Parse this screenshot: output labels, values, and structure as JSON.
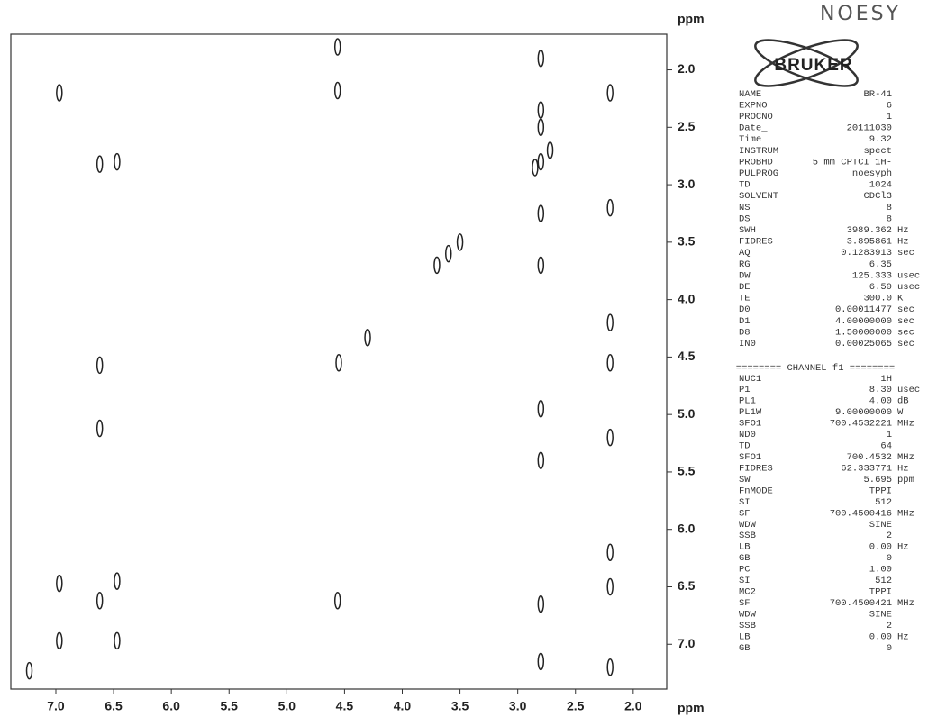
{
  "chart_data": {
    "type": "scatter",
    "annotation": "NOESY",
    "logo": "BRUKER",
    "x_label": "ppm",
    "y_label": "ppm",
    "color": "#222222",
    "invert_x": true,
    "invert_y": true,
    "xlim": [
      7.39,
      1.71
    ],
    "ylim": [
      1.69,
      7.39
    ],
    "xticks": [
      {
        "value": 7.0,
        "label": "7.0"
      },
      6.5,
      {
        "value": 6.0,
        "label": "6.0"
      },
      5.5,
      {
        "value": 5.0,
        "label": "5.0"
      },
      4.5,
      {
        "value": 4.0,
        "label": "4.0"
      },
      3.5,
      {
        "value": 3.0,
        "label": "3.0"
      },
      2.5,
      {
        "value": 2.0,
        "label": "2.0"
      }
    ],
    "yticks": [
      {
        "value": 2.0,
        "label": "2.0"
      },
      2.5,
      {
        "value": 3.0,
        "label": "3.0"
      },
      3.5,
      {
        "value": 4.0,
        "label": "4.0"
      },
      4.5,
      {
        "value": 5.0,
        "label": "5.0"
      },
      5.5,
      {
        "value": 6.0,
        "label": "6.0"
      },
      6.5,
      {
        "value": 7.0,
        "label": "7.0"
      }
    ],
    "x": [
      6.97,
      6.62,
      6.47,
      4.56,
      4.56,
      2.8,
      2.8,
      2.8,
      2.8,
      2.72,
      2.85,
      2.2,
      2.2,
      2.2,
      2.2,
      2.2,
      2.2,
      2.2,
      2.2,
      2.8,
      2.8,
      2.8,
      2.8,
      2.8,
      2.8,
      3.5,
      3.6,
      3.7,
      4.55,
      4.3,
      6.62,
      6.62,
      4.56,
      6.97,
      6.62,
      6.47,
      6.47,
      6.97,
      7.23
    ],
    "values": [
      2.2,
      2.82,
      2.8,
      1.8,
      2.18,
      1.9,
      2.35,
      2.5,
      2.8,
      2.7,
      2.85,
      2.2,
      3.2,
      4.2,
      4.55,
      5.2,
      6.2,
      6.5,
      7.2,
      3.25,
      3.7,
      4.95,
      5.4,
      6.65,
      7.15,
      3.5,
      3.6,
      3.7,
      4.55,
      4.33,
      4.57,
      5.12,
      6.62,
      6.47,
      6.62,
      6.45,
      6.97,
      6.97,
      7.23
    ]
  },
  "parameters": [
    [
      "NAME",
      "BR-41"
    ],
    [
      "EXPNO",
      "6"
    ],
    [
      "PROCNO",
      "1"
    ],
    [
      "Date_",
      "20111030"
    ],
    [
      "Time",
      "9.32"
    ],
    [
      "INSTRUM",
      "spect"
    ],
    [
      "PROBHD",
      "5 mm CPTCI 1H-"
    ],
    [
      "PULPROG",
      "noesyph"
    ],
    [
      "TD",
      "1024"
    ],
    [
      "SOLVENT",
      "CDCl3"
    ],
    [
      "NS",
      "8"
    ],
    [
      "DS",
      "8"
    ],
    [
      "SWH",
      "3989.362",
      "Hz"
    ],
    [
      "FIDRES",
      "3.895861",
      "Hz"
    ],
    [
      "AQ",
      "0.1283913",
      "sec"
    ],
    [
      "RG",
      "6.35"
    ],
    [
      "DW",
      "125.333",
      "usec"
    ],
    [
      "DE",
      "6.50",
      "usec"
    ],
    [
      "TE",
      "300.0",
      "K"
    ],
    [
      "D0",
      "0.00011477",
      "sec"
    ],
    [
      "D1",
      "4.00000000",
      "sec"
    ],
    [
      "D8",
      "1.50000000",
      "sec"
    ],
    [
      "IN0",
      "0.00025065",
      "sec"
    ]
  ],
  "channel_header": "======== CHANNEL f1 ========",
  "channel_parameters": [
    [
      "NUC1",
      "1H"
    ],
    [
      "P1",
      "8.30",
      "usec"
    ],
    [
      "PL1",
      "4.00",
      "dB"
    ],
    [
      "PL1W",
      "9.00000000",
      "W"
    ],
    [
      "SFO1",
      "700.4532221",
      "MHz"
    ],
    [
      "ND0",
      "1"
    ],
    [
      "TD",
      "64"
    ],
    [
      "SFO1",
      "700.4532",
      "MHz"
    ],
    [
      "FIDRES",
      "62.333771",
      "Hz"
    ],
    [
      "SW",
      "5.695",
      "ppm"
    ],
    [
      "FnMODE",
      "TPPI"
    ],
    [
      "SI",
      "512"
    ],
    [
      "SF",
      "700.4500416",
      "MHz"
    ],
    [
      "WDW",
      "SINE"
    ],
    [
      "SSB",
      "2"
    ],
    [
      "LB",
      "0.00",
      "Hz"
    ],
    [
      "GB",
      "0"
    ],
    [
      "PC",
      "1.00"
    ],
    [
      "SI",
      "512"
    ],
    [
      "MC2",
      "TPPI"
    ],
    [
      "SF",
      "700.4500421",
      "MHz"
    ],
    [
      "WDW",
      "SINE"
    ],
    [
      "SSB",
      "2"
    ],
    [
      "LB",
      "0.00",
      "Hz"
    ],
    [
      "GB",
      "0"
    ]
  ]
}
